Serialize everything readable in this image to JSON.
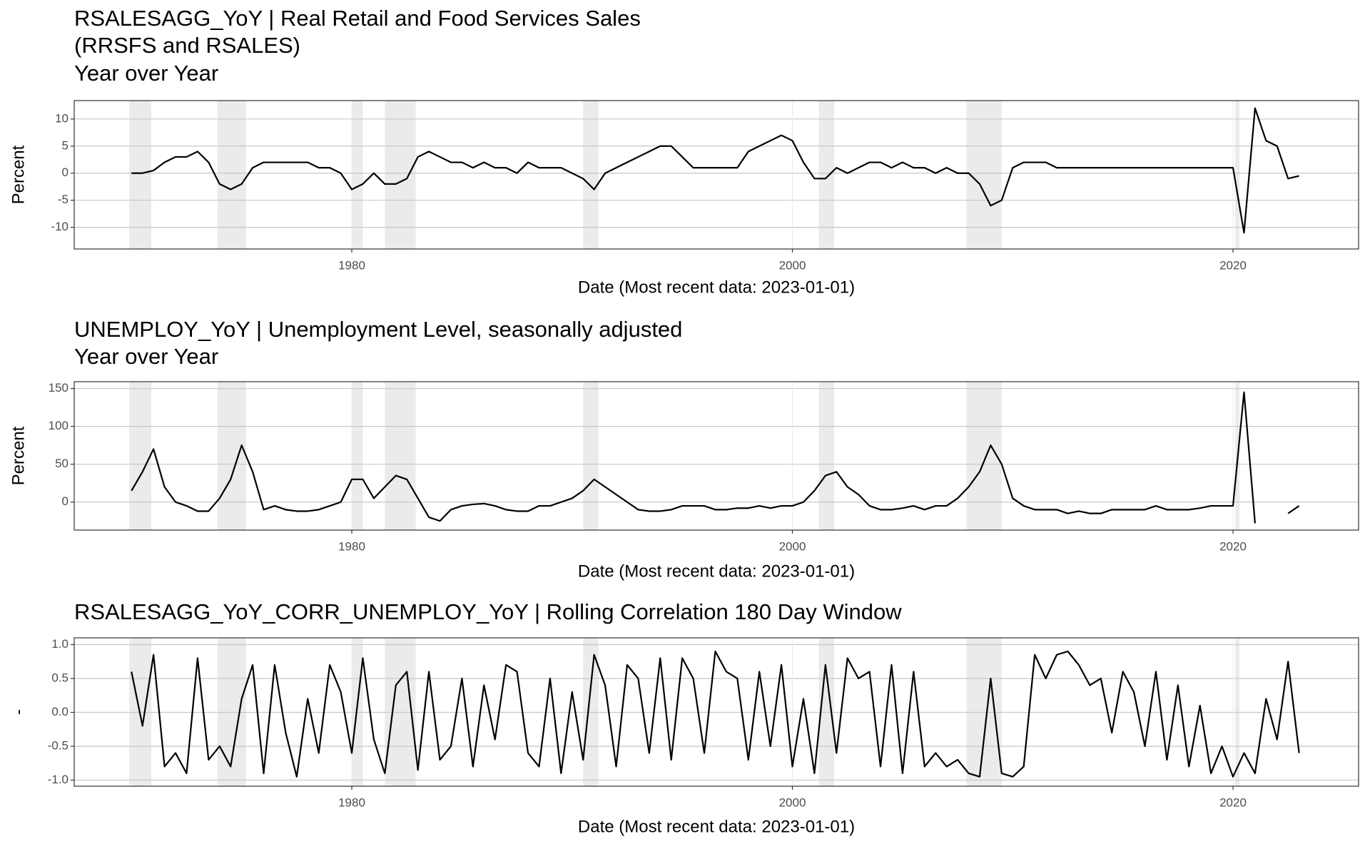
{
  "chart_data": [
    {
      "type": "line",
      "title": [
        "RSALESAGG_YoY | Real Retail and Food Services Sales",
        "(RRSFS and RSALES)",
        "Year over Year"
      ],
      "x_label": "Date (Most recent data: 2023-01-01)",
      "y_label": "Percent",
      "color": "#000000",
      "x": [
        1970,
        1970.5,
        1971,
        1971.5,
        1972,
        1972.5,
        1973,
        1973.5,
        1974,
        1974.5,
        1975,
        1975.5,
        1976,
        1976.5,
        1977,
        1977.5,
        1978,
        1978.5,
        1979,
        1979.5,
        1980,
        1980.5,
        1981,
        1981.5,
        1982,
        1982.5,
        1983,
        1983.5,
        1984,
        1984.5,
        1985,
        1985.5,
        1986,
        1986.5,
        1987,
        1987.5,
        1988,
        1988.5,
        1989,
        1989.5,
        1990,
        1990.5,
        1991,
        1991.5,
        1992,
        1992.5,
        1993,
        1993.5,
        1994,
        1994.5,
        1995,
        1995.5,
        1996,
        1996.5,
        1997,
        1997.5,
        1998,
        1998.5,
        1999,
        1999.5,
        2000,
        2000.5,
        2001,
        2001.5,
        2002,
        2002.5,
        2003,
        2003.5,
        2004,
        2004.5,
        2005,
        2005.5,
        2006,
        2006.5,
        2007,
        2007.5,
        2008,
        2008.5,
        2009,
        2009.5,
        2010,
        2010.5,
        2011,
        2011.5,
        2012,
        2012.5,
        2013,
        2013.5,
        2014,
        2014.5,
        2015,
        2015.5,
        2016,
        2016.5,
        2017,
        2017.5,
        2018,
        2018.5,
        2019,
        2019.5,
        2020,
        2020.5,
        2021,
        2021.5,
        2022,
        2022.5,
        2023
      ],
      "values": [
        0,
        0,
        0.5,
        2,
        3,
        3,
        4,
        2,
        -2,
        -3,
        -2,
        1,
        2,
        2,
        2,
        2,
        2,
        1,
        1,
        0,
        -3,
        -2,
        0,
        -2,
        -2,
        -1,
        3,
        4,
        3,
        2,
        2,
        1,
        2,
        1,
        1,
        0,
        2,
        1,
        1,
        1,
        0,
        -1,
        -3,
        0,
        1,
        2,
        3,
        4,
        5,
        5,
        3,
        1,
        1,
        1,
        1,
        1,
        4,
        5,
        6,
        7,
        6,
        2,
        -1,
        -1,
        1,
        0,
        1,
        2,
        2,
        1,
        2,
        1,
        1,
        0,
        1,
        0,
        0,
        -2,
        -6,
        -5,
        1,
        2,
        2,
        2,
        1,
        1,
        1,
        1,
        1,
        1,
        1,
        1,
        1,
        1,
        1,
        1,
        1,
        1,
        1,
        1,
        1,
        -11,
        12,
        6,
        5,
        -1,
        -0.5
      ],
      "xlim": [
        1967.4,
        2025.7
      ],
      "ylim": [
        -14,
        13.4
      ],
      "xticks": [
        1980,
        2000,
        2020
      ],
      "yticks": [
        10,
        5,
        0,
        -5,
        -10
      ],
      "grid": true,
      "shaded_periods": [
        [
          1969.9,
          1970.9
        ],
        [
          1973.9,
          1975.2
        ],
        [
          1980.0,
          1980.5
        ],
        [
          1981.5,
          1982.9
        ],
        [
          1990.5,
          1991.2
        ],
        [
          2001.2,
          2001.9
        ],
        [
          2007.9,
          2009.5
        ],
        [
          2020.1,
          2020.3
        ]
      ]
    },
    {
      "type": "line",
      "title": [
        "UNEMPLOY_YoY | Unemployment Level, seasonally adjusted",
        "Year over Year"
      ],
      "x_label": "Date (Most recent data: 2023-01-01)",
      "y_label": "Percent",
      "color": "#000000",
      "x": [
        1970,
        1970.5,
        1971,
        1971.5,
        1972,
        1972.5,
        1973,
        1973.5,
        1974,
        1974.5,
        1975,
        1975.5,
        1976,
        1976.5,
        1977,
        1977.5,
        1978,
        1978.5,
        1979,
        1979.5,
        1980,
        1980.5,
        1981,
        1981.5,
        1982,
        1982.5,
        1983,
        1983.5,
        1984,
        1984.5,
        1985,
        1985.5,
        1986,
        1986.5,
        1987,
        1987.5,
        1988,
        1988.5,
        1989,
        1989.5,
        1990,
        1990.5,
        1991,
        1991.5,
        1992,
        1992.5,
        1993,
        1993.5,
        1994,
        1994.5,
        1995,
        1995.5,
        1996,
        1996.5,
        1997,
        1997.5,
        1998,
        1998.5,
        1999,
        1999.5,
        2000,
        2000.5,
        2001,
        2001.5,
        2002,
        2002.5,
        2003,
        2003.5,
        2004,
        2004.5,
        2005,
        2005.5,
        2006,
        2006.5,
        2007,
        2007.5,
        2008,
        2008.5,
        2009,
        2009.5,
        2010,
        2010.5,
        2011,
        2011.5,
        2012,
        2012.5,
        2013,
        2013.5,
        2014,
        2014.5,
        2015,
        2015.5,
        2016,
        2016.5,
        2017,
        2017.5,
        2018,
        2018.5,
        2019,
        2019.5,
        2020,
        2020.5,
        2021,
        2021.5,
        2022,
        2022.5,
        2023
      ],
      "values": [
        15,
        40,
        70,
        20,
        0,
        -5,
        -12,
        -12,
        5,
        30,
        75,
        40,
        -10,
        -5,
        -10,
        -12,
        -12,
        -10,
        -5,
        0,
        30,
        30,
        5,
        20,
        35,
        30,
        5,
        -20,
        -25,
        -10,
        -5,
        -3,
        -2,
        -5,
        -10,
        -12,
        -12,
        -5,
        -5,
        0,
        5,
        15,
        30,
        20,
        10,
        0,
        -10,
        -12,
        -12,
        -10,
        -5,
        -5,
        -5,
        -10,
        -10,
        -8,
        -8,
        -5,
        -8,
        -5,
        -5,
        0,
        15,
        35,
        40,
        20,
        10,
        -5,
        -10,
        -10,
        -8,
        -5,
        -10,
        -5,
        -5,
        5,
        20,
        40,
        75,
        50,
        5,
        -5,
        -10,
        -10,
        -10,
        -15,
        -12,
        -15,
        -15,
        -10,
        -10,
        -10,
        -10,
        -5,
        -10,
        -10,
        -10,
        -8,
        -5,
        -5,
        -5,
        145,
        -28,
        null,
        null,
        -15,
        -5
      ],
      "xlim": [
        1967.4,
        2025.7
      ],
      "ylim": [
        -37,
        159
      ],
      "xticks": [
        1980,
        2000,
        2020
      ],
      "yticks": [
        150,
        100,
        50,
        0
      ],
      "grid": true,
      "shaded_periods": [
        [
          1969.9,
          1970.9
        ],
        [
          1973.9,
          1975.2
        ],
        [
          1980.0,
          1980.5
        ],
        [
          1981.5,
          1982.9
        ],
        [
          1990.5,
          1991.2
        ],
        [
          2001.2,
          2001.9
        ],
        [
          2007.9,
          2009.5
        ],
        [
          2020.1,
          2020.3
        ]
      ]
    },
    {
      "type": "line",
      "title": [
        "RSALESAGG_YoY_CORR_UNEMPLOY_YoY | Rolling Correlation  180  Day Window"
      ],
      "x_label": "Date (Most recent data: 2023-01-01)",
      "y_label": "-",
      "color": "#000000",
      "x": [
        1970,
        1970.5,
        1971,
        1971.5,
        1972,
        1972.5,
        1973,
        1973.5,
        1974,
        1974.5,
        1975,
        1975.5,
        1976,
        1976.5,
        1977,
        1977.5,
        1978,
        1978.5,
        1979,
        1979.5,
        1980,
        1980.5,
        1981,
        1981.5,
        1982,
        1982.5,
        1983,
        1983.5,
        1984,
        1984.5,
        1985,
        1985.5,
        1986,
        1986.5,
        1987,
        1987.5,
        1988,
        1988.5,
        1989,
        1989.5,
        1990,
        1990.5,
        1991,
        1991.5,
        1992,
        1992.5,
        1993,
        1993.5,
        1994,
        1994.5,
        1995,
        1995.5,
        1996,
        1996.5,
        1997,
        1997.5,
        1998,
        1998.5,
        1999,
        1999.5,
        2000,
        2000.5,
        2001,
        2001.5,
        2002,
        2002.5,
        2003,
        2003.5,
        2004,
        2004.5,
        2005,
        2005.5,
        2006,
        2006.5,
        2007,
        2007.5,
        2008,
        2008.5,
        2009,
        2009.5,
        2010,
        2010.5,
        2011,
        2011.5,
        2012,
        2012.5,
        2013,
        2013.5,
        2014,
        2014.5,
        2015,
        2015.5,
        2016,
        2016.5,
        2017,
        2017.5,
        2018,
        2018.5,
        2019,
        2019.5,
        2020,
        2020.5,
        2021,
        2021.5,
        2022,
        2022.5,
        2023
      ],
      "values": [
        0.6,
        -0.2,
        0.85,
        -0.8,
        -0.6,
        -0.9,
        0.8,
        -0.7,
        -0.5,
        -0.8,
        0.2,
        0.7,
        -0.9,
        0.7,
        -0.3,
        -0.95,
        0.2,
        -0.6,
        0.7,
        0.3,
        -0.6,
        0.8,
        -0.4,
        -0.9,
        0.4,
        0.6,
        -0.85,
        0.6,
        -0.7,
        -0.5,
        0.5,
        -0.8,
        0.4,
        -0.4,
        0.7,
        0.6,
        -0.6,
        -0.8,
        0.5,
        -0.9,
        0.3,
        -0.7,
        0.85,
        0.4,
        -0.8,
        0.7,
        0.5,
        -0.6,
        0.8,
        -0.7,
        0.8,
        0.5,
        -0.6,
        0.9,
        0.6,
        0.5,
        -0.7,
        0.6,
        -0.5,
        0.7,
        -0.8,
        0.2,
        -0.9,
        0.7,
        -0.6,
        0.8,
        0.5,
        0.6,
        -0.8,
        0.7,
        -0.9,
        0.6,
        -0.8,
        -0.6,
        -0.8,
        -0.7,
        -0.9,
        -0.95,
        0.5,
        -0.9,
        -0.95,
        -0.8,
        0.85,
        0.5,
        0.85,
        0.9,
        0.7,
        0.4,
        0.5,
        -0.3,
        0.6,
        0.3,
        -0.5,
        0.6,
        -0.7,
        0.4,
        -0.8,
        0.1,
        -0.9,
        -0.5,
        -0.95,
        -0.6,
        -0.9,
        0.2,
        -0.4,
        0.75,
        -0.6
      ],
      "xlim": [
        1967.4,
        2025.7
      ],
      "ylim": [
        -1.09,
        1.1
      ],
      "xticks": [
        1980,
        2000,
        2020
      ],
      "yticks": [
        {
          "value": 1,
          "label": "1.0"
        },
        {
          "value": 0.5,
          "label": "0.5"
        },
        {
          "value": 0,
          "label": "0.0"
        },
        {
          "value": -0.5,
          "label": "-0.5"
        },
        {
          "value": -1,
          "label": "-1.0"
        }
      ],
      "grid": true,
      "shaded_periods": [
        [
          1969.9,
          1970.9
        ],
        [
          1973.9,
          1975.2
        ],
        [
          1980.0,
          1980.5
        ],
        [
          1981.5,
          1982.9
        ],
        [
          1990.5,
          1991.2
        ],
        [
          2001.2,
          2001.9
        ],
        [
          2007.9,
          2009.5
        ],
        [
          2020.1,
          2020.3
        ]
      ]
    }
  ]
}
